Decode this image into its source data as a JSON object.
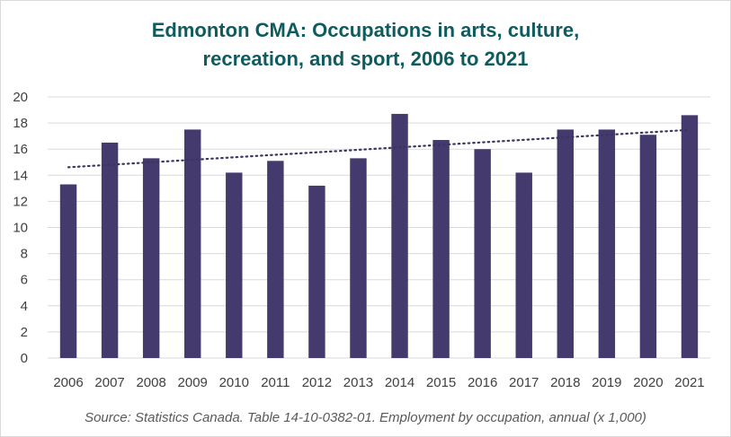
{
  "title_line1": "Edmonton CMA: Occupations in arts, culture,",
  "title_line2": "recreation, and sport, 2006 to 2021",
  "source": "Source: Statistics Canada. Table 14-10-0382-01. Employment by occupation, annual (x 1,000)",
  "colors": {
    "bar": "#453a6e",
    "trendline": "#3b3560",
    "grid": "#d9d9d9",
    "title": "#0f5b5e"
  },
  "chart_data": {
    "type": "bar",
    "title": "Edmonton CMA: Occupations in arts, culture, recreation, and sport, 2006 to 2021",
    "categories": [
      "2006",
      "2007",
      "2008",
      "2009",
      "2010",
      "2011",
      "2012",
      "2013",
      "2014",
      "2015",
      "2016",
      "2017",
      "2018",
      "2019",
      "2020",
      "2021"
    ],
    "values": [
      13.3,
      16.5,
      15.3,
      17.5,
      14.2,
      15.1,
      13.2,
      15.3,
      18.7,
      16.7,
      16.0,
      14.2,
      17.5,
      17.5,
      17.1,
      18.6
    ],
    "ylim": [
      0,
      20
    ],
    "yticks": [
      0,
      2,
      4,
      6,
      8,
      10,
      12,
      14,
      16,
      18,
      20
    ],
    "grid": true,
    "legend": "none",
    "trendline": {
      "type": "linear",
      "style": "dotted"
    }
  }
}
